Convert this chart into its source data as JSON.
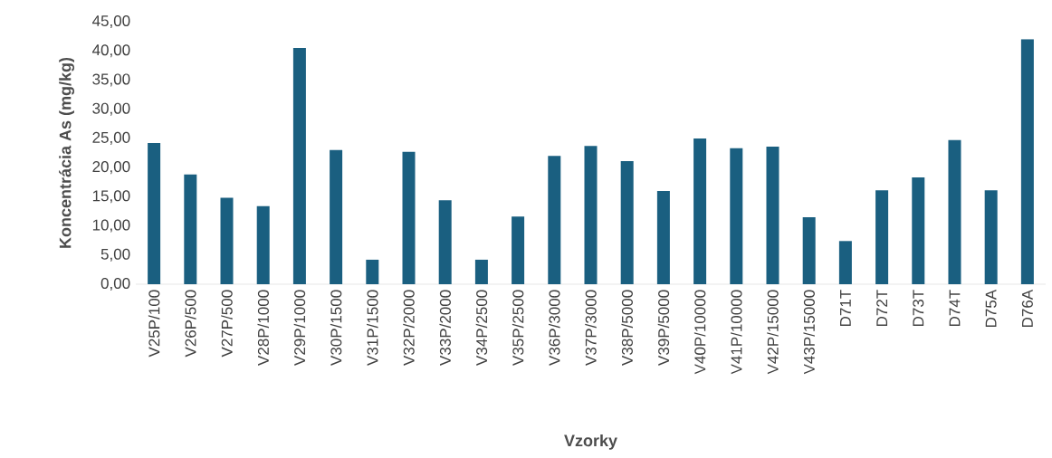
{
  "chart_data": {
    "type": "bar",
    "xlabel": "Vzorky",
    "ylabel": "Koncentrácia As (mg/kg)",
    "color": "#1a5f80",
    "categories": [
      "V25P/100",
      "V26P/500",
      "V27P/500",
      "V28P/1000",
      "V29P/1000",
      "V30P/1500",
      "V31P/1500",
      "V32P/2000",
      "V33P/2000",
      "V34P/2500",
      "V35P/2500",
      "V36P/3000",
      "V37P/3000",
      "V38P/5000",
      "V39P/5000",
      "V40P/10000",
      "V41P/10000",
      "V42P/15000",
      "V43P/15000",
      "D71T",
      "D72T",
      "D73T",
      "D74T",
      "D75A",
      "D76A"
    ],
    "values": [
      24.2,
      18.8,
      14.8,
      13.4,
      40.5,
      23.0,
      4.2,
      22.7,
      14.4,
      4.2,
      11.6,
      22.0,
      23.7,
      21.1,
      16.0,
      25.0,
      23.3,
      23.6,
      11.5,
      7.4,
      16.1,
      18.3,
      24.7,
      16.1,
      42.0
    ],
    "ylim": [
      0,
      45
    ],
    "yticks": [
      {
        "value": 0,
        "label": "0,00"
      },
      {
        "value": 5,
        "label": "5,00"
      },
      {
        "value": 10,
        "label": "10,00"
      },
      {
        "value": 15,
        "label": "15,00"
      },
      {
        "value": 20,
        "label": "20,00"
      },
      {
        "value": 25,
        "label": "25,00"
      },
      {
        "value": 30,
        "label": "30,00"
      },
      {
        "value": 35,
        "label": "35,00"
      },
      {
        "value": 40,
        "label": "40,00"
      },
      {
        "value": 45,
        "label": "45,00"
      }
    ]
  }
}
